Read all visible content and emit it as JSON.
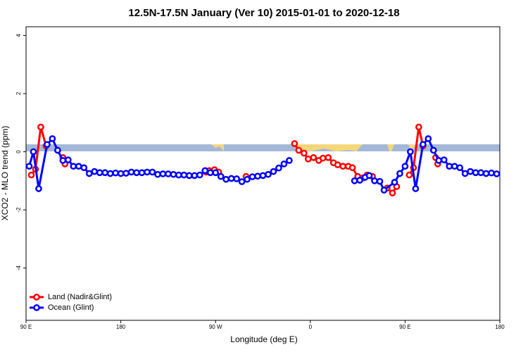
{
  "chart_data": {
    "type": "line",
    "title": "12.5N-17.5N January (Ver 10)   2015-01-01 to 2020-12-18",
    "x_label": "Longitude (deg E)",
    "y_label": "XCO2 - MLO trend (ppm)",
    "xlim": [
      90,
      540
    ],
    "ylim": [
      -5.8,
      4.3
    ],
    "xticks": [
      {
        "value": 90,
        "label": "90 E"
      },
      {
        "value": 180,
        "label": "180"
      },
      {
        "value": 270,
        "label": "90 W"
      },
      {
        "value": 360,
        "label": "0"
      },
      {
        "value": 450,
        "label": "90 E"
      },
      {
        "value": 540,
        "label": "180"
      }
    ],
    "yticks": [
      -4,
      -2,
      0,
      2,
      4
    ],
    "legend": "bottom-left",
    "series": [
      {
        "name": "Land (Nadir&Glint)",
        "color": "#ff0000",
        "x": [
          95,
          99,
          104,
          109,
          115,
          125,
          127,
          200,
          261,
          264,
          269,
          273,
          285,
          299,
          320,
          345,
          349,
          354,
          358,
          363,
          368,
          372,
          377,
          382,
          386,
          391,
          396,
          400,
          405,
          410,
          414,
          419,
          425,
          433,
          438,
          442,
          447,
          454,
          458,
          463,
          467,
          470,
          479,
          481
        ],
        "values": [
          -0.8,
          -0.6,
          0.85,
          0.2,
          null,
          -0.2,
          -0.42,
          null,
          -0.7,
          -0.65,
          -0.62,
          -0.7,
          null,
          -0.85,
          null,
          0.28,
          0.05,
          -0.05,
          -0.25,
          -0.2,
          -0.3,
          -0.22,
          -0.2,
          -0.38,
          -0.45,
          -0.5,
          -0.5,
          -0.55,
          -0.85,
          -0.9,
          -0.8,
          -0.85,
          null,
          -1.25,
          -1.42,
          -1.2,
          null,
          -0.8,
          -0.55,
          0.85,
          0.2,
          null,
          -0.2,
          -0.42
        ]
      },
      {
        "name": "Ocean (Glint)",
        "color": "#0000ff",
        "x": [
          93,
          97,
          102,
          110,
          115,
          120,
          125,
          130,
          135,
          140,
          145,
          150,
          155,
          160,
          165,
          170,
          175,
          180,
          185,
          190,
          195,
          200,
          205,
          210,
          215,
          220,
          225,
          230,
          235,
          240,
          245,
          250,
          255,
          260,
          265,
          270,
          275,
          280,
          285,
          290,
          295,
          300,
          305,
          310,
          315,
          320,
          325,
          330,
          335,
          340,
          350,
          402,
          407,
          412,
          416,
          421,
          426,
          430,
          440,
          445,
          450,
          455,
          460,
          467,
          472,
          477,
          482,
          487,
          492,
          497,
          502,
          507,
          512,
          517,
          522,
          527,
          532,
          537
        ],
        "values": [
          -0.5,
          0.0,
          -1.27,
          0.25,
          0.45,
          0.05,
          -0.3,
          -0.28,
          -0.5,
          -0.5,
          -0.55,
          -0.75,
          -0.68,
          -0.72,
          -0.72,
          -0.75,
          -0.73,
          -0.75,
          -0.74,
          -0.7,
          -0.72,
          -0.72,
          -0.7,
          -0.7,
          -0.78,
          -0.76,
          -0.76,
          -0.78,
          -0.8,
          -0.8,
          -0.82,
          -0.82,
          -0.8,
          -0.65,
          -0.72,
          -0.72,
          -0.85,
          -0.95,
          -0.92,
          -0.93,
          -1.03,
          -0.95,
          -0.86,
          -0.84,
          -0.82,
          -0.78,
          -0.68,
          -0.56,
          -0.42,
          -0.3,
          null,
          -1.0,
          -0.98,
          -0.88,
          -0.82,
          -1.0,
          -1.02,
          -1.32,
          -1.05,
          -0.75,
          -0.5,
          0.0,
          -1.27,
          0.25,
          0.45,
          0.05,
          -0.3,
          -0.28,
          -0.5,
          -0.5,
          -0.55,
          -0.75,
          -0.68,
          -0.72,
          -0.72,
          -0.75,
          -0.73,
          -0.76
        ]
      }
    ]
  }
}
